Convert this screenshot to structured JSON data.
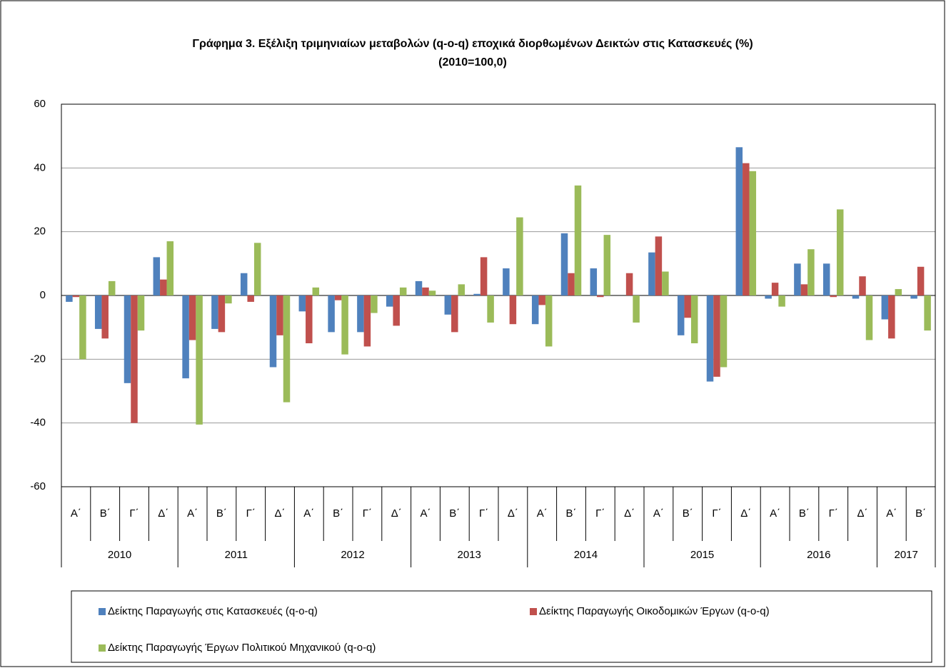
{
  "chart_data": {
    "type": "bar",
    "title": "Γράφημα 3. Εξέλιξη τριμηνιαίων μεταβολών (q-o-q) εποχικά διορθωμένων Δεικτών  στις Κατασκευές (%)",
    "subtitle": "(2010=100,0)",
    "years": [
      {
        "year": "2010",
        "quarters": [
          "Α΄",
          "Β΄",
          "Γ΄",
          "Δ΄"
        ]
      },
      {
        "year": "2011",
        "quarters": [
          "Α΄",
          "Β΄",
          "Γ΄",
          "Δ΄"
        ]
      },
      {
        "year": "2012",
        "quarters": [
          "Α΄",
          "Β΄",
          "Γ΄",
          "Δ΄"
        ]
      },
      {
        "year": "2013",
        "quarters": [
          "Α΄",
          "Β΄",
          "Γ΄",
          "Δ΄"
        ]
      },
      {
        "year": "2014",
        "quarters": [
          "Α΄",
          "Β΄",
          "Γ΄",
          "Δ΄"
        ]
      },
      {
        "year": "2015",
        "quarters": [
          "Α΄",
          "Β΄",
          "Γ΄",
          "Δ΄"
        ]
      },
      {
        "year": "2016",
        "quarters": [
          "Α΄",
          "Β΄",
          "Γ΄",
          "Δ΄"
        ]
      },
      {
        "year": "2017",
        "quarters": [
          "Α΄",
          "Β΄"
        ]
      }
    ],
    "series": [
      {
        "name": "Δείκτης Παραγωγής στις Κατασκευές (q-o-q)",
        "color": "#4f81bd",
        "values": [
          -2,
          -10.5,
          -27.5,
          12,
          -26,
          -10.5,
          7,
          -22.5,
          -5,
          -11.5,
          -11.5,
          -3.5,
          4.5,
          -6,
          0.5,
          8.5,
          -9,
          19.5,
          8.5,
          0,
          13.5,
          -12.5,
          -27,
          46.5,
          -1,
          10,
          10,
          -1,
          -7.5,
          -1
        ]
      },
      {
        "name": "Δείκτης Παραγωγής Οικοδομικών Έργων (q-o-q)",
        "color": "#c0504d",
        "values": [
          -0.5,
          -13.5,
          -40,
          5,
          -14,
          -11.5,
          -2,
          -12.5,
          -15,
          -1.5,
          -16,
          -9.5,
          2.5,
          -11.5,
          12,
          -9,
          -3,
          7,
          -0.5,
          7,
          18.5,
          -7,
          -25.5,
          41.5,
          4,
          3.5,
          -0.5,
          6,
          -13.5,
          9
        ]
      },
      {
        "name": "Δείκτης Παραγωγής Έργων Πολιτικού Μηχανικού (q-o-q)",
        "color": "#9bbb59",
        "values": [
          -20,
          4.5,
          -11,
          17,
          -40.5,
          -2.5,
          16.5,
          -33.5,
          2.5,
          -18.5,
          -5.5,
          2.5,
          1.5,
          3.5,
          -8.5,
          24.5,
          -16,
          34.5,
          19,
          -8.5,
          7.5,
          -15,
          -22.5,
          39,
          -3.5,
          14.5,
          27,
          -14,
          2,
          -11
        ]
      }
    ],
    "ylim": [
      -60,
      60
    ],
    "yticks": [
      -60,
      -40,
      -20,
      0,
      20,
      40,
      60
    ],
    "grid": true,
    "legend": "bottom"
  }
}
